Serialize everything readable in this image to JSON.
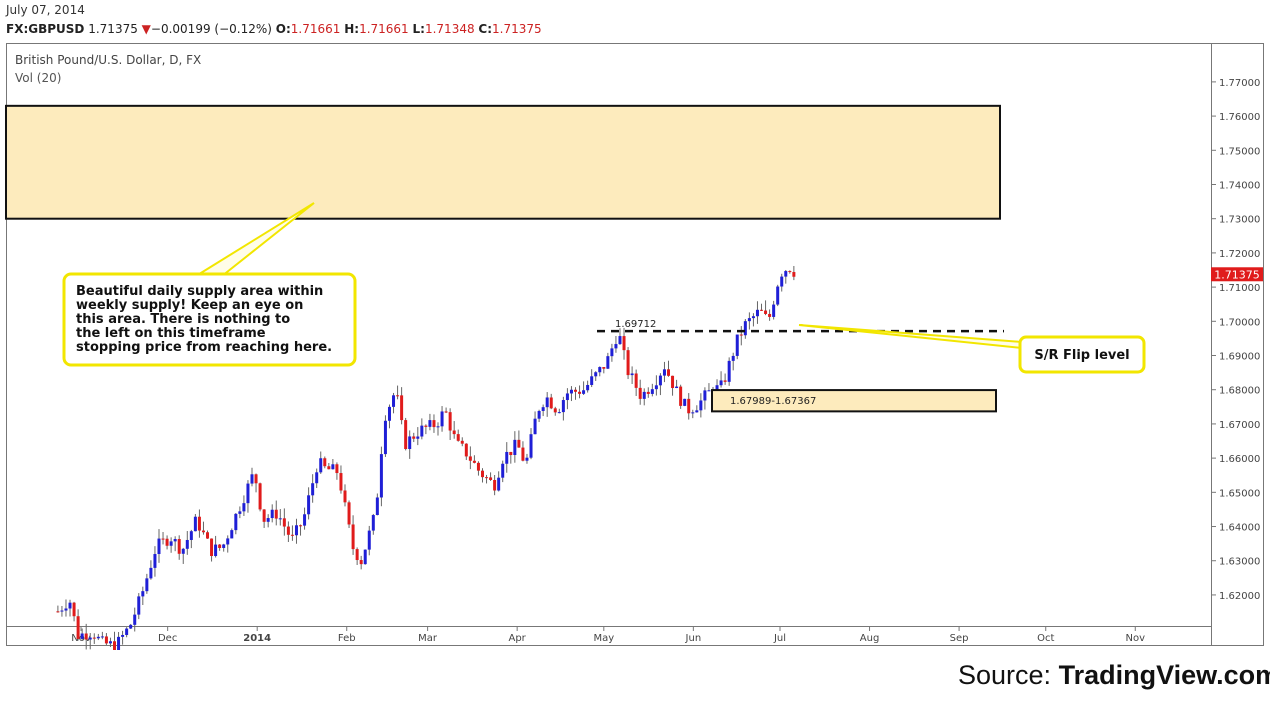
{
  "header": {
    "date": "July 07, 2014",
    "symbol": "FX:GBPUSD",
    "last": "1.71375",
    "change_arrow": "▼",
    "change": "−0.00199 (−0.12%)",
    "open_label": "O:",
    "open": "1.71661",
    "high_label": "H:",
    "high": "1.71661",
    "low_label": "L:",
    "low": "1.71348",
    "close_label": "C:",
    "close": "1.71375"
  },
  "chart_meta": {
    "title": "British Pound/U.S. Dollar, D, FX",
    "indicator": "Vol (20)"
  },
  "colors": {
    "up_candle": "#1f1fd6",
    "down_candle": "#e01b1b",
    "zone_fill": "#fdebbd",
    "callout_border": "#f2e600",
    "price_tag": "#e01b1b"
  },
  "chart_data": {
    "type": "candlestick",
    "title": "British Pound/U.S. Dollar, D, FX",
    "x_ticks": [
      "Nov",
      "Dec",
      "2014",
      "Feb",
      "Mar",
      "Apr",
      "May",
      "Jun",
      "Jul",
      "Aug",
      "Sep",
      "Oct",
      "Nov"
    ],
    "y_ticks": [
      "1.77000",
      "1.76000",
      "1.75000",
      "1.74000",
      "1.73000",
      "1.72000",
      "1.71000",
      "1.70000",
      "1.69000",
      "1.68000",
      "1.67000",
      "1.66000",
      "1.65000",
      "1.64000",
      "1.63000",
      "1.62000"
    ],
    "ylim": [
      1.6115,
      1.7802
    ],
    "last_price": "1.71375",
    "close_path": [
      [
        "2013-10-24",
        1.6152
      ],
      [
        "2013-10-28",
        1.6188
      ],
      [
        "2013-10-31",
        1.6082
      ],
      [
        "2013-11-05",
        1.6092
      ],
      [
        "2013-11-08",
        1.606
      ],
      [
        "2013-11-13",
        1.605
      ],
      [
        "2013-11-18",
        1.611
      ],
      [
        "2013-11-22",
        1.62
      ],
      [
        "2013-11-27",
        1.634
      ],
      [
        "2013-12-02",
        1.637
      ],
      [
        "2013-12-06",
        1.633
      ],
      [
        "2013-12-11",
        1.642
      ],
      [
        "2013-12-16",
        1.633
      ],
      [
        "2013-12-20",
        1.634
      ],
      [
        "2013-12-27",
        1.648
      ],
      [
        "2013-12-31",
        1.656
      ],
      [
        "2014-01-03",
        1.642
      ],
      [
        "2014-01-08",
        1.644
      ],
      [
        "2014-01-13",
        1.636
      ],
      [
        "2014-01-17",
        1.642
      ],
      [
        "2014-01-22",
        1.659
      ],
      [
        "2014-01-24",
        1.657
      ],
      [
        "2014-01-29",
        1.656
      ],
      [
        "2014-02-03",
        1.634
      ],
      [
        "2014-02-06",
        1.63
      ],
      [
        "2014-02-11",
        1.644
      ],
      [
        "2014-02-14",
        1.672
      ],
      [
        "2014-02-18",
        1.68
      ],
      [
        "2014-02-21",
        1.664
      ],
      [
        "2014-02-26",
        1.668
      ],
      [
        "2014-03-04",
        1.67
      ],
      [
        "2014-03-07",
        1.674
      ],
      [
        "2014-03-11",
        1.664
      ],
      [
        "2014-03-14",
        1.662
      ],
      [
        "2014-03-19",
        1.656
      ],
      [
        "2014-03-24",
        1.652
      ],
      [
        "2014-03-27",
        1.66
      ],
      [
        "2014-04-01",
        1.664
      ],
      [
        "2014-04-04",
        1.658
      ],
      [
        "2014-04-08",
        1.674
      ],
      [
        "2014-04-11",
        1.678
      ],
      [
        "2014-04-15",
        1.674
      ],
      [
        "2014-04-18",
        1.679
      ],
      [
        "2014-04-24",
        1.68
      ],
      [
        "2014-04-29",
        1.685
      ],
      [
        "2014-05-02",
        1.688
      ],
      [
        "2014-05-06",
        1.6971
      ],
      [
        "2014-05-09",
        1.686
      ],
      [
        "2014-05-14",
        1.678
      ],
      [
        "2014-05-19",
        1.683
      ],
      [
        "2014-05-22",
        1.687
      ],
      [
        "2014-05-27",
        1.678
      ],
      [
        "2014-05-30",
        1.674
      ],
      [
        "2014-06-03",
        1.676
      ],
      [
        "2014-06-06",
        1.679
      ],
      [
        "2014-06-11",
        1.681
      ],
      [
        "2014-06-16",
        1.694
      ],
      [
        "2014-06-19",
        1.699
      ],
      [
        "2014-06-24",
        1.703
      ],
      [
        "2014-06-27",
        1.7
      ],
      [
        "2014-07-01",
        1.714
      ],
      [
        "2014-07-04",
        1.716
      ],
      [
        "2014-07-07",
        1.71375
      ]
    ],
    "annotations": [
      {
        "type": "zone",
        "label": "",
        "from": 1.73,
        "to": 1.763
      },
      {
        "type": "zone",
        "label": "1.67989-1.67367",
        "from": 1.67367,
        "to": 1.67989
      },
      {
        "type": "hline",
        "label": "1.69712",
        "value": 1.69712
      },
      {
        "type": "callout",
        "text": "Beautiful daily supply area within weekly supply! Keep an eye on this area. There is nothing to the left on this timeframe stopping price from reaching here."
      },
      {
        "type": "callout",
        "text": "S/R Flip level"
      }
    ]
  },
  "callout1": [
    "Beautiful daily supply area within",
    "weekly supply! Keep an eye on",
    "this area. There is nothing to",
    "the left on this timeframe",
    "stopping price from reaching here."
  ],
  "callout2": "S/R Flip level",
  "zone_label": "1.67989-1.67367",
  "sr_label": "1.69712",
  "footer": {
    "source_prefix": "Source:",
    "source_brand": "TradingView.com"
  }
}
